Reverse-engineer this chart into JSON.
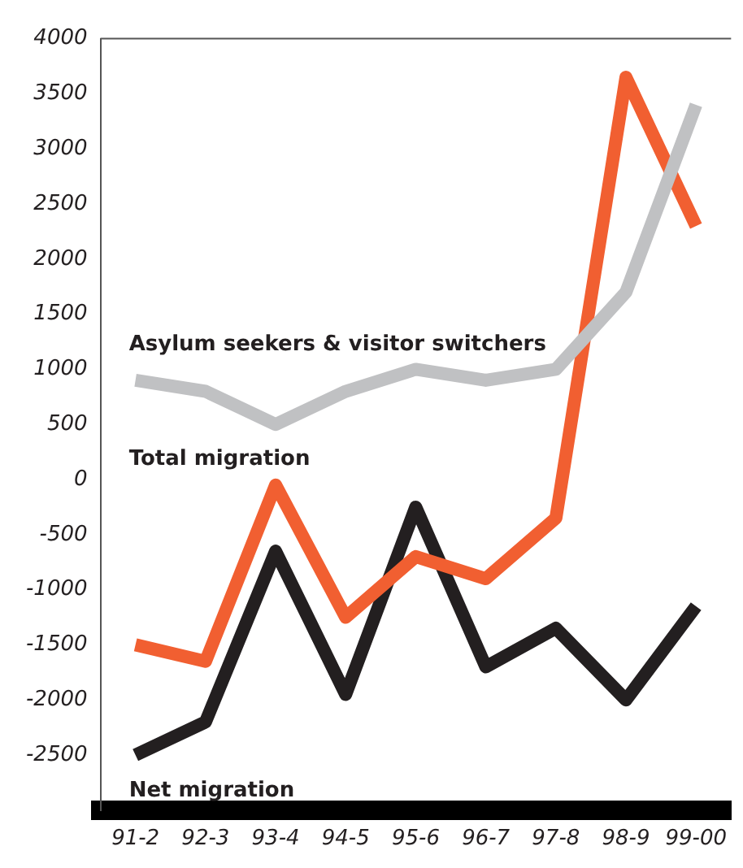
{
  "chart_data": {
    "type": "line",
    "categories": [
      "91-2",
      "92-3",
      "93-4",
      "94-5",
      "95-6",
      "96-7",
      "97-8",
      "98-9",
      "99-00"
    ],
    "series": [
      {
        "name": "Asylum seekers & visitor switchers",
        "color": "#c0c1c3",
        "values": [
          900,
          800,
          500,
          800,
          1000,
          900,
          1000,
          1700,
          3400
        ]
      },
      {
        "name": "Total migration",
        "color": "#f15f31",
        "values": [
          -1500,
          -1650,
          -50,
          -1250,
          -700,
          -900,
          -350,
          3650,
          2300
        ]
      },
      {
        "name": "Net migration",
        "color": "#231f20",
        "values": [
          -2500,
          -2200,
          -650,
          -1950,
          -250,
          -1700,
          -1350,
          -2000,
          -1150
        ]
      }
    ],
    "ylim": [
      -3000,
      4000
    ],
    "yticks": [
      -2500,
      -2000,
      -1500,
      -1000,
      -500,
      0,
      500,
      1000,
      1500,
      2000,
      2500,
      3000,
      3500,
      4000
    ],
    "grid": false,
    "legend": false,
    "marker": "none",
    "line_style": "solid"
  }
}
